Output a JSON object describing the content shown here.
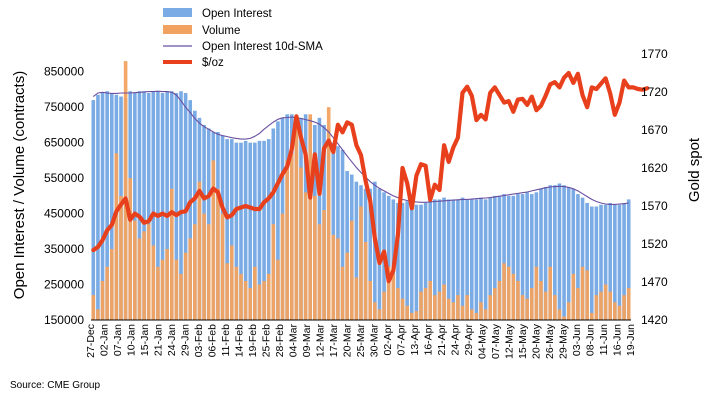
{
  "chart_data": {
    "type": "bar",
    "source": "Source: CME Group",
    "ylabel_left": "Open Interest / Volume (contracts)",
    "ylabel_right": "Gold spot",
    "ylim_left": [
      150000,
      900000
    ],
    "yticks_left": [
      "150000",
      "250000",
      "350000",
      "450000",
      "550000",
      "650000",
      "750000",
      "850000"
    ],
    "ylim_right": [
      1420,
      1770
    ],
    "yticks_right": [
      "1420",
      "1470",
      "1520",
      "1570",
      "1620",
      "1670",
      "1720",
      "1770"
    ],
    "xticks": [
      "27-Dec",
      "02-Jan",
      "07-Jan",
      "10-Jan",
      "15-Jan",
      "21-Jan",
      "24-Jan",
      "29-Jan",
      "03-Feb",
      "06-Feb",
      "11-Feb",
      "14-Feb",
      "19-Feb",
      "25-Feb",
      "28-Feb",
      "04-Mar",
      "09-Mar",
      "12-Mar",
      "17-Mar",
      "20-Mar",
      "25-Mar",
      "30-Mar",
      "02-Apr",
      "07-Apr",
      "13-Apr",
      "16-Apr",
      "21-Apr",
      "24-Apr",
      "29-Apr",
      "04-May",
      "07-May",
      "12-May",
      "15-May",
      "20-May",
      "26-May",
      "29-May",
      "03-Jun",
      "08-Jun",
      "11-Jun",
      "16-Jun",
      "19-Jun"
    ],
    "legend": [
      {
        "label": "Open Interest",
        "style": "bar",
        "color": "#6fa3e0"
      },
      {
        "label": "Volume",
        "style": "bar",
        "color": "#f0a05a"
      },
      {
        "label": "Open Interest 10d-SMA",
        "style": "line",
        "color": "#6a4fa0"
      },
      {
        "label": "$/oz",
        "style": "thick-line",
        "color": "#e8401c"
      }
    ],
    "series": [
      {
        "name": "Open Interest",
        "axis": "left",
        "values": [
          770000,
          785000,
          790000,
          795000,
          790000,
          785000,
          780000,
          775000,
          795000,
          790000,
          795000,
          795000,
          790000,
          795000,
          795000,
          790000,
          795000,
          795000,
          790000,
          795000,
          790000,
          770000,
          740000,
          720000,
          700000,
          690000,
          680000,
          680000,
          670000,
          660000,
          660000,
          650000,
          650000,
          655000,
          650000,
          650000,
          655000,
          655000,
          660000,
          690000,
          710000,
          720000,
          730000,
          730000,
          700000,
          720000,
          730000,
          720000,
          700000,
          720000,
          700000,
          690000,
          650000,
          640000,
          630000,
          570000,
          560000,
          540000,
          530000,
          520000,
          520000,
          540000,
          520000,
          510000,
          500000,
          490000,
          480000,
          480000,
          485000,
          480000,
          475000,
          475000,
          480000,
          485000,
          490000,
          490000,
          495000,
          490000,
          490000,
          490000,
          495000,
          490000,
          490000,
          490000,
          495000,
          490000,
          495000,
          500000,
          500000,
          505000,
          500000,
          500000,
          505000,
          505000,
          510000,
          505000,
          510000,
          520000,
          525000,
          530000,
          530000,
          535000,
          530000,
          525000,
          520000,
          505000,
          495000,
          480000,
          470000,
          470000,
          475000,
          475000,
          480000,
          475000,
          475000,
          480000,
          490000
        ]
      },
      {
        "name": "Volume",
        "axis": "left",
        "values": [
          220000,
          180000,
          260000,
          300000,
          350000,
          620000,
          500000,
          880000,
          550000,
          430000,
          380000,
          400000,
          420000,
          360000,
          300000,
          320000,
          350000,
          520000,
          320000,
          280000,
          340000,
          380000,
          420000,
          540000,
          450000,
          420000,
          600000,
          520000,
          450000,
          310000,
          360000,
          300000,
          280000,
          260000,
          240000,
          300000,
          250000,
          260000,
          280000,
          420000,
          320000,
          450000,
          600000,
          620000,
          700000,
          580000,
          510000,
          730000,
          500000,
          420000,
          460000,
          750000,
          390000,
          380000,
          300000,
          340000,
          430000,
          270000,
          470000,
          370000,
          260000,
          200000,
          180000,
          230000,
          300000,
          280000,
          240000,
          210000,
          190000,
          170000,
          175000,
          230000,
          240000,
          260000,
          220000,
          230000,
          250000,
          210000,
          200000,
          220000,
          190000,
          220000,
          180000,
          170000,
          200000,
          180000,
          220000,
          240000,
          260000,
          310000,
          300000,
          280000,
          260000,
          220000,
          210000,
          240000,
          300000,
          260000,
          230000,
          300000,
          220000,
          180000,
          160000,
          200000,
          280000,
          240000,
          300000,
          290000,
          170000,
          220000,
          230000,
          250000,
          230000,
          200000,
          190000,
          220000,
          240000
        ]
      },
      {
        "name": "Open Interest 10d-SMA",
        "axis": "left",
        "values": [
          780000,
          790000,
          792000,
          790000,
          789000,
          789000,
          790000,
          790000,
          790000,
          791000,
          792000,
          793000,
          794000,
          794000,
          795000,
          794000,
          794000,
          792000,
          784000,
          768000,
          750000,
          735000,
          718000,
          705000,
          695000,
          688000,
          680000,
          674000,
          670000,
          667000,
          664000,
          662000,
          660000,
          660000,
          662000,
          668000,
          676000,
          688000,
          698000,
          708000,
          716000,
          720000,
          721000,
          722000,
          720000,
          718000,
          715000,
          712000,
          708000,
          702000,
          692000,
          680000,
          664000,
          647000,
          630000,
          612000,
          596000,
          580000,
          566000,
          553000,
          540000,
          530000,
          521000,
          514000,
          507000,
          500000,
          495000,
          490000,
          487000,
          485000,
          483000,
          482000,
          482000,
          483000,
          484000,
          485000,
          486000,
          487000,
          488000,
          489000,
          490000,
          490000,
          491000,
          492000,
          493000,
          494000,
          495000,
          497000,
          499000,
          501000,
          503000,
          505000,
          507000,
          509000,
          511000,
          514000,
          517000,
          520000,
          523000,
          525000,
          526000,
          527000,
          526000,
          524000,
          520000,
          514000,
          506000,
          498000,
          490000,
          484000,
          480000,
          477000,
          476000,
          476000,
          477000,
          478000,
          480000
        ]
      },
      {
        "name": "$/oz",
        "axis": "right",
        "values": [
          1512,
          1516,
          1525,
          1538,
          1545,
          1563,
          1572,
          1580,
          1552,
          1560,
          1556,
          1548,
          1550,
          1560,
          1557,
          1560,
          1557,
          1562,
          1558,
          1562,
          1563,
          1575,
          1580,
          1590,
          1580,
          1583,
          1593,
          1588,
          1568,
          1555,
          1558,
          1566,
          1568,
          1570,
          1568,
          1566,
          1566,
          1575,
          1580,
          1588,
          1600,
          1612,
          1622,
          1645,
          1688,
          1660,
          1638,
          1581,
          1638,
          1586,
          1646,
          1656,
          1641,
          1677,
          1667,
          1680,
          1677,
          1650,
          1637,
          1603,
          1577,
          1528,
          1495,
          1510,
          1471,
          1485,
          1532,
          1620,
          1600,
          1567,
          1610,
          1625,
          1623,
          1578,
          1598,
          1591,
          1650,
          1628,
          1647,
          1660,
          1719,
          1727,
          1715,
          1683,
          1690,
          1684,
          1719,
          1726,
          1716,
          1706,
          1708,
          1694,
          1710,
          1711,
          1703,
          1714,
          1696,
          1702,
          1715,
          1730,
          1733,
          1726,
          1739,
          1745,
          1732,
          1744,
          1716,
          1700,
          1726,
          1724,
          1731,
          1738,
          1718,
          1690,
          1706,
          1735,
          1726,
          1726,
          1724,
          1723,
          1725
        ]
      }
    ]
  }
}
